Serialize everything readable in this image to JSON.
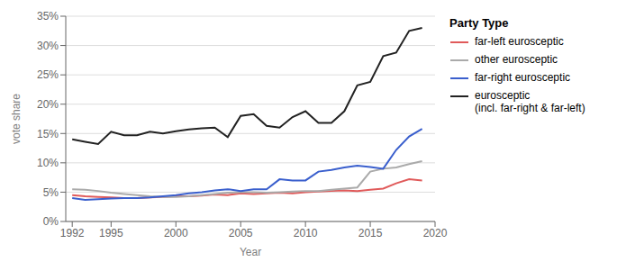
{
  "chart_data": {
    "type": "line",
    "xlabel": "Year",
    "ylabel": "vote share",
    "legend_title": "Party Type",
    "legend": "right",
    "grid": "y",
    "x": [
      1992,
      1993,
      1994,
      1995,
      1996,
      1997,
      1998,
      1999,
      2000,
      2001,
      2002,
      2003,
      2004,
      2005,
      2006,
      2007,
      2008,
      2009,
      2010,
      2011,
      2012,
      2013,
      2014,
      2015,
      2016,
      2017,
      2018,
      2019
    ],
    "series": [
      {
        "name": "far-left eurosceptic",
        "color": "#e05a5a",
        "values": [
          4.5,
          4.3,
          4.2,
          4.1,
          4.0,
          4.0,
          4.1,
          4.2,
          4.3,
          4.3,
          4.4,
          4.6,
          4.5,
          4.8,
          4.7,
          4.8,
          4.9,
          4.8,
          5.0,
          5.1,
          5.2,
          5.3,
          5.2,
          5.4,
          5.6,
          6.5,
          7.2,
          7.0
        ]
      },
      {
        "name": "other eurosceptic",
        "color": "#aaaaaa",
        "values": [
          5.5,
          5.4,
          5.2,
          4.9,
          4.7,
          4.5,
          4.3,
          4.2,
          4.2,
          4.3,
          4.5,
          4.7,
          4.9,
          5.0,
          5.0,
          4.9,
          5.0,
          5.1,
          5.2,
          5.2,
          5.4,
          5.6,
          5.8,
          8.5,
          9.0,
          9.2,
          9.8,
          10.3
        ]
      },
      {
        "name": "far-right eurosceptic",
        "color": "#3a5fcd",
        "values": [
          4.0,
          3.7,
          3.8,
          3.9,
          4.0,
          4.0,
          4.1,
          4.3,
          4.5,
          4.8,
          5.0,
          5.3,
          5.5,
          5.2,
          5.5,
          5.5,
          7.2,
          7.0,
          7.0,
          8.5,
          8.8,
          9.2,
          9.5,
          9.3,
          9.0,
          12.2,
          14.5,
          15.8
        ]
      },
      {
        "name": "eurosceptic\n(incl. far-right & far-left)",
        "color": "#222222",
        "values": [
          14.0,
          13.6,
          13.2,
          15.3,
          14.7,
          14.7,
          15.3,
          15.0,
          15.4,
          15.7,
          15.9,
          16.0,
          14.4,
          18.0,
          18.3,
          16.3,
          16.0,
          17.8,
          18.8,
          16.8,
          16.8,
          18.8,
          23.2,
          23.8,
          28.2,
          28.8,
          32.5,
          33.0
        ]
      }
    ],
    "xlim": [
      1991.5,
      2020
    ],
    "xticks": [
      1992,
      1995,
      2000,
      2005,
      2010,
      2015,
      2020
    ],
    "ylim": [
      0,
      35
    ],
    "yticks": [
      {
        "value": 0,
        "label": "0%"
      },
      {
        "value": 5,
        "label": "5%"
      },
      {
        "value": 10,
        "label": "10%"
      },
      {
        "value": 15,
        "label": "15%"
      },
      {
        "value": 20,
        "label": "20%"
      },
      {
        "value": 25,
        "label": "25%"
      },
      {
        "value": 30,
        "label": "30%"
      },
      {
        "value": 35,
        "label": "35%"
      }
    ]
  }
}
